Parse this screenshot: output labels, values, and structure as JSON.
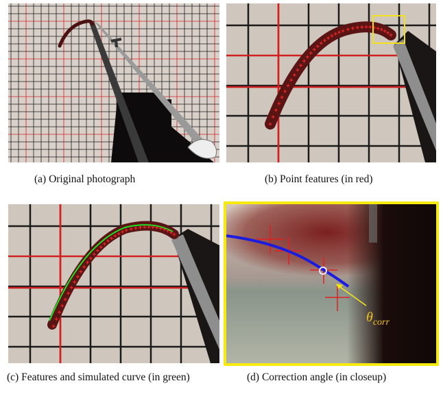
{
  "panels": [
    {
      "caption": "(a) Original photograph"
    },
    {
      "caption": "(b) Point features (in red)"
    },
    {
      "caption": "(c) Features and simulated curve (in green)"
    },
    {
      "caption": "(d) Correction angle (in closeup)"
    }
  ],
  "annotation": {
    "symbol": "θ",
    "subscript": "corr"
  }
}
